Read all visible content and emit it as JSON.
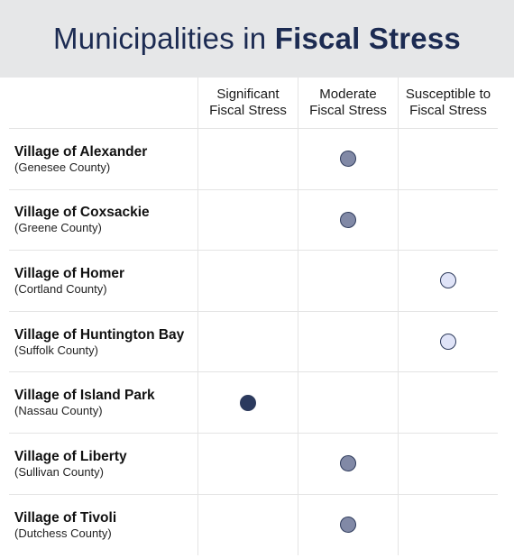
{
  "title": {
    "regular": "Municipalities in ",
    "bold": "Fiscal Stress"
  },
  "columns": [
    {
      "key": "significant",
      "line1": "Significant",
      "line2": "Fiscal Stress"
    },
    {
      "key": "moderate",
      "line1": "Moderate",
      "line2": "Fiscal Stress"
    },
    {
      "key": "susceptible",
      "line1": "Susceptible to",
      "line2": "Fiscal Stress"
    }
  ],
  "colors": {
    "significant": "#2b3a5e",
    "moderate": "#8189a6",
    "susceptible": "#dfe3f7"
  },
  "rows": [
    {
      "name": "Village of Alexander",
      "county": "(Genesee County)",
      "status": "moderate"
    },
    {
      "name": "Village of Coxsackie",
      "county": "(Greene County)",
      "status": "moderate"
    },
    {
      "name": "Village of Homer",
      "county": "(Cortland County)",
      "status": "susceptible"
    },
    {
      "name": "Village of Huntington Bay",
      "county": "(Suffolk County)",
      "status": "susceptible"
    },
    {
      "name": "Village of Island Park",
      "county": "(Nassau County)",
      "status": "significant"
    },
    {
      "name": "Village of Liberty",
      "county": "(Sullivan County)",
      "status": "moderate"
    },
    {
      "name": "Village of Tivoli",
      "county": "(Dutchess County)",
      "status": "moderate"
    }
  ]
}
